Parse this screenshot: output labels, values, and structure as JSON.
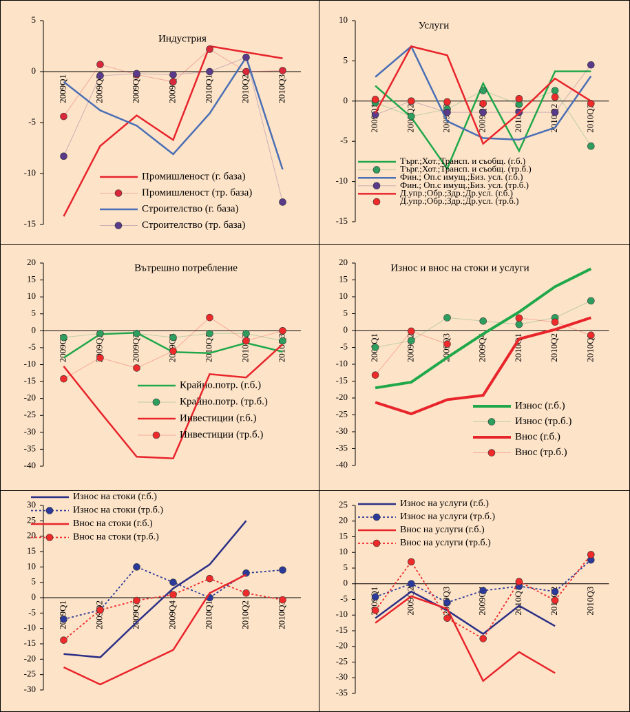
{
  "chart_data": [
    {
      "type": "line",
      "title": "Индустрия",
      "categories": [
        "2009Q1",
        "2009Q2",
        "2009Q3",
        "2009Q4",
        "2010Q1",
        "2010Q2",
        "2010Q3"
      ],
      "ylim": [
        -15,
        5
      ],
      "yticks": [
        -15,
        -10,
        -5,
        0,
        5
      ],
      "series": [
        {
          "name": "Промишленост (г. база)",
          "color": "#e8242b",
          "line_style": "solid",
          "marker": false,
          "values": [
            -14.2,
            -7.3,
            -4.3,
            -6.7,
            2.5,
            1.9,
            1.3
          ]
        },
        {
          "name": "Промишленост (тр. база)",
          "color": "#d8283a",
          "line_style": "faint",
          "marker": true,
          "values": [
            -4.4,
            0.7,
            -0.3,
            -1.0,
            2.2,
            0.0,
            0.1
          ]
        },
        {
          "name": "Строителство (г. база)",
          "color": "#4a6fb5",
          "line_style": "solid",
          "marker": false,
          "values": [
            -1.0,
            -3.8,
            -5.3,
            -8.1,
            -4.1,
            1.4,
            -9.6
          ]
        },
        {
          "name": "Строителство (тр. база)",
          "color": "#5a3a8a",
          "line_style": "faint",
          "marker": true,
          "values": [
            -8.3,
            -0.4,
            -0.2,
            -0.3,
            0.0,
            1.4,
            -12.8
          ]
        }
      ]
    },
    {
      "type": "line",
      "title": "Услуги",
      "categories": [
        "2009Q1",
        "2009Q2",
        "2009Q3",
        "2009Q4",
        "2010Q1",
        "2010Q2",
        "2010Q3"
      ],
      "ylim": [
        -15,
        10
      ],
      "yticks": [
        -15,
        -10,
        -5,
        0,
        5,
        10
      ],
      "series": [
        {
          "name": "Търг.;Хот.;Трансп. и съобщ. (г.б.)",
          "color": "#1fa84a",
          "line_style": "solid",
          "marker": false,
          "values": [
            1.9,
            -2.0,
            -8.4,
            2.2,
            -6.2,
            3.7,
            3.7
          ]
        },
        {
          "name": "Търг.;Хот.;Трансп. и съобщ. (тр.б.)",
          "color": "#2e9e5e",
          "line_style": "faint",
          "marker": true,
          "values": [
            -0.2,
            -1.9,
            -1.0,
            1.3,
            -0.4,
            1.3,
            -5.6
          ]
        },
        {
          "name": "Фин.; Оп.с имущ.;Биз. усл. (г.б.)",
          "color": "#4a6fb5",
          "line_style": "solid",
          "marker": false,
          "values": [
            3.0,
            6.8,
            -2.5,
            -4.6,
            -4.8,
            -3.3,
            3.1
          ]
        },
        {
          "name": "Фин.; Оп.с имущ.;Биз. усл. (тр.б.)",
          "color": "#5a3a8a",
          "line_style": "faint",
          "marker": true,
          "values": [
            -1.7,
            0.0,
            -1.4,
            -1.4,
            -1.4,
            -1.4,
            4.5
          ]
        },
        {
          "name": "Д.упр.;Обр.;Здр.;Др.усл. (г.б.)",
          "color": "#e8242b",
          "line_style": "solid",
          "marker": false,
          "values": [
            -1.5,
            6.8,
            5.7,
            -5.3,
            -1.5,
            2.8,
            0.0
          ]
        },
        {
          "name": "Д.упр.;Обр.;Здр.;Др.усл. (тр.б.)",
          "color": "#ee2a2a",
          "line_style": "none",
          "marker": true,
          "values": [
            0.2,
            0.0,
            -0.1,
            -0.3,
            0.3,
            0.5,
            -0.3
          ]
        }
      ]
    },
    {
      "type": "line",
      "title": "Вътрешно потребление",
      "categories": [
        "2009Q1",
        "2009Q2",
        "2009Q3",
        "2009Q4",
        "2010Q1",
        "2010Q2",
        "2010Q3"
      ],
      "ylim": [
        -40,
        20
      ],
      "yticks": [
        -40,
        -35,
        -30,
        -25,
        -20,
        -15,
        -10,
        -5,
        0,
        5,
        10,
        15,
        20
      ],
      "series": [
        {
          "name": "Крайно.потр. (г.б.)",
          "color": "#1fa84a",
          "line_style": "solid",
          "marker": false,
          "values": [
            -8.0,
            -1.0,
            -0.6,
            -6.3,
            -6.6,
            -3.6,
            -6.2
          ]
        },
        {
          "name": "Крайно.потр. (тр.б.)",
          "color": "#2e9e5e",
          "line_style": "faint",
          "marker": true,
          "values": [
            -2.0,
            -0.8,
            -0.8,
            -2.0,
            -0.8,
            -0.8,
            -3.0
          ]
        },
        {
          "name": "Инвестиции (г.б.)",
          "color": "#e8242b",
          "line_style": "solid",
          "marker": false,
          "values": [
            -10.5,
            -24.0,
            -37.2,
            -37.7,
            -12.8,
            -13.8,
            -4.0
          ]
        },
        {
          "name": "Инвестиции (тр.б.)",
          "color": "#ee2a2a",
          "line_style": "faint",
          "marker": true,
          "values": [
            -14.2,
            -8.0,
            -11.0,
            -6.0,
            3.9,
            -3.0,
            0.0
          ]
        }
      ]
    },
    {
      "type": "line",
      "title": "Износ и внос на стоки и услуги",
      "categories": [
        "2009Q1",
        "2009Q2",
        "2009Q3",
        "2009Q4",
        "2010Q1",
        "2010Q2",
        "2010Q3"
      ],
      "ylim": [
        -40,
        20
      ],
      "yticks": [
        -40,
        -35,
        -30,
        -25,
        -20,
        -15,
        -10,
        -5,
        0,
        5,
        10,
        15,
        20
      ],
      "series": [
        {
          "name": "Износ (г.б.)",
          "color": "#1fa84a",
          "line_style": "thick",
          "marker": false,
          "values": [
            -17.0,
            -15.3,
            -8.0,
            -1.0,
            5.5,
            13.0,
            18.3
          ]
        },
        {
          "name": "Износ (тр.б.)",
          "color": "#2e9e5e",
          "line_style": "faint",
          "marker": true,
          "values": [
            -5.0,
            -3.0,
            3.8,
            2.8,
            1.8,
            3.8,
            8.8
          ]
        },
        {
          "name": "Внос (г.б.)",
          "color": "#e8242b",
          "line_style": "thick",
          "marker": false,
          "values": [
            -21.3,
            -24.7,
            -20.5,
            -19.2,
            -2.5,
            0.3,
            3.8
          ]
        },
        {
          "name": "Внос (тр.б.)",
          "color": "#ee2a2a",
          "line_style": "faint",
          "marker": true,
          "values": [
            -13.2,
            -0.2,
            -4.0,
            null,
            3.7,
            2.5,
            -1.4
          ]
        }
      ]
    },
    {
      "type": "line",
      "categories": [
        "2009Q1",
        "2009Q2",
        "2009Q3",
        "2009Q4",
        "2010Q1",
        "2010Q2",
        "2010Q3"
      ],
      "ylim": [
        -30,
        30
      ],
      "yticks": [
        -30,
        -25,
        -20,
        -15,
        -10,
        -5,
        0,
        5,
        10,
        15,
        20,
        25,
        30
      ],
      "series": [
        {
          "name": "Износ на стоки (г.б.)",
          "color": "#2b2f86",
          "line_style": "solid",
          "marker": false,
          "values": [
            -18.3,
            -19.4,
            -8.0,
            3.0,
            10.8,
            25.0,
            null
          ]
        },
        {
          "name": "Износ на стоки (тр.б.)",
          "color": "#2b3a9a",
          "line_style": "dotted",
          "marker": true,
          "values": [
            -7.0,
            -4.0,
            10.0,
            5.0,
            0.0,
            8.0,
            9.0
          ]
        },
        {
          "name": "Внос на стоки (г.б.)",
          "color": "#e8242b",
          "line_style": "solid",
          "marker": false,
          "values": [
            -22.6,
            -28.2,
            -22.6,
            -17.0,
            1.5,
            7.5,
            null
          ]
        },
        {
          "name": "Внос на стоки (тр.б.)",
          "color": "#ee2a2a",
          "line_style": "dotted",
          "marker": true,
          "values": [
            -13.8,
            -4.0,
            -0.9,
            1.0,
            6.2,
            1.5,
            -0.7
          ]
        }
      ]
    },
    {
      "type": "line",
      "categories": [
        "2009Q1",
        "2009Q2",
        "2009Q3",
        "2009Q4",
        "2010Q1",
        "2010Q2",
        "2010Q3"
      ],
      "ylim": [
        -35,
        25
      ],
      "yticks": [
        -35,
        -30,
        -25,
        -20,
        -15,
        -10,
        -5,
        0,
        5,
        10,
        15,
        20,
        25
      ],
      "series": [
        {
          "name": "Износ на услуги (г.б.)",
          "color": "#2b2f86",
          "line_style": "solid",
          "marker": false,
          "values": [
            -11.0,
            -2.5,
            -8.5,
            -16.0,
            -7.0,
            -13.5,
            null
          ]
        },
        {
          "name": "Износ на услуги (тр.б.)",
          "color": "#2b3a9a",
          "line_style": "dotted",
          "marker": true,
          "values": [
            -4.2,
            0.0,
            -6.0,
            -2.2,
            -0.8,
            -2.5,
            7.6
          ]
        },
        {
          "name": "Внос на услуги (г.б.)",
          "color": "#e8242b",
          "line_style": "solid",
          "marker": false,
          "values": [
            -12.5,
            -4.0,
            -8.0,
            -31.0,
            -21.8,
            -28.5,
            null
          ]
        },
        {
          "name": "Внос на услуги (тр.б.)",
          "color": "#ee2a2a",
          "line_style": "dotted",
          "marker": true,
          "values": [
            -8.5,
            7.0,
            -11.0,
            -17.5,
            0.7,
            -5.3,
            9.3
          ]
        }
      ]
    }
  ]
}
